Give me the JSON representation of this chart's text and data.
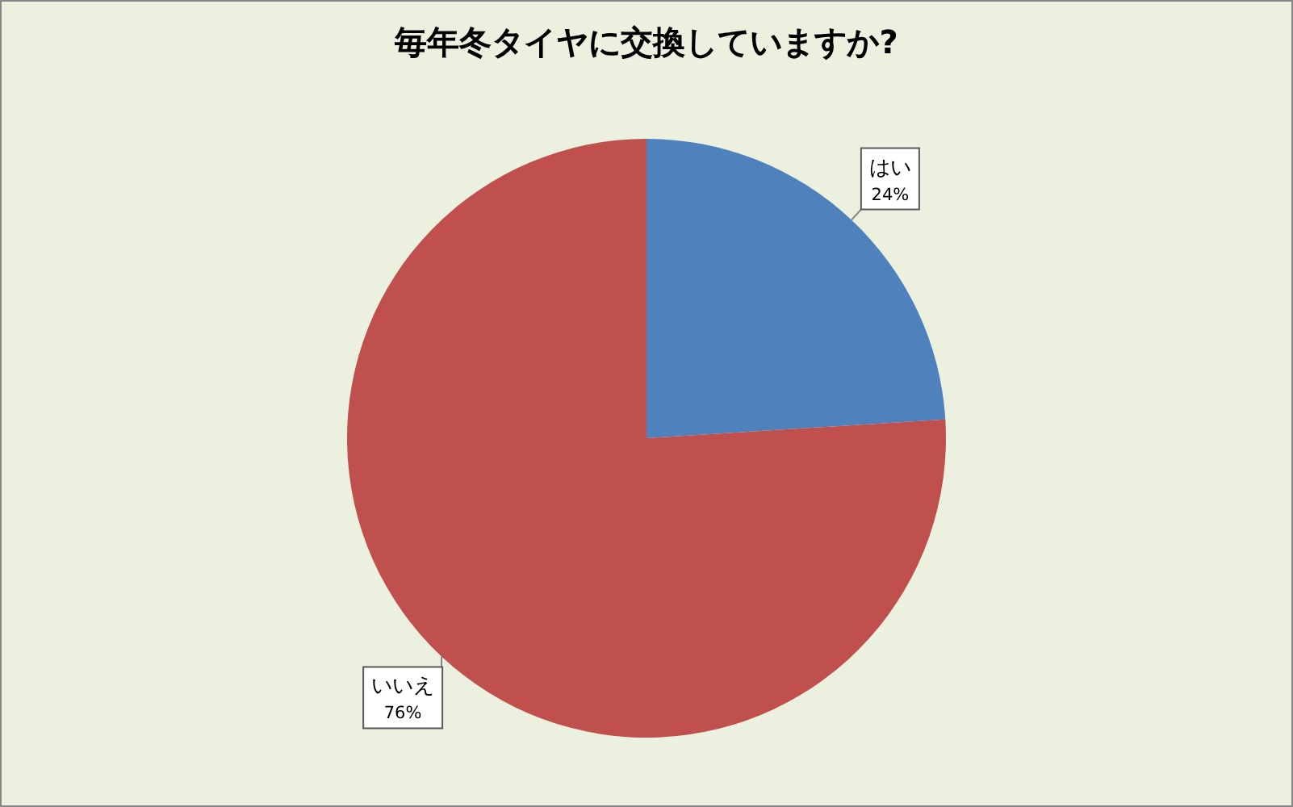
{
  "chart_data": {
    "type": "pie",
    "title": "毎年冬タイヤに交換していますか?",
    "categories": [
      "はい",
      "いいえ"
    ],
    "values": [
      24,
      76
    ],
    "colors": [
      "#4f81bd",
      "#c0504d"
    ],
    "value_labels": [
      "24%",
      "76%"
    ]
  }
}
